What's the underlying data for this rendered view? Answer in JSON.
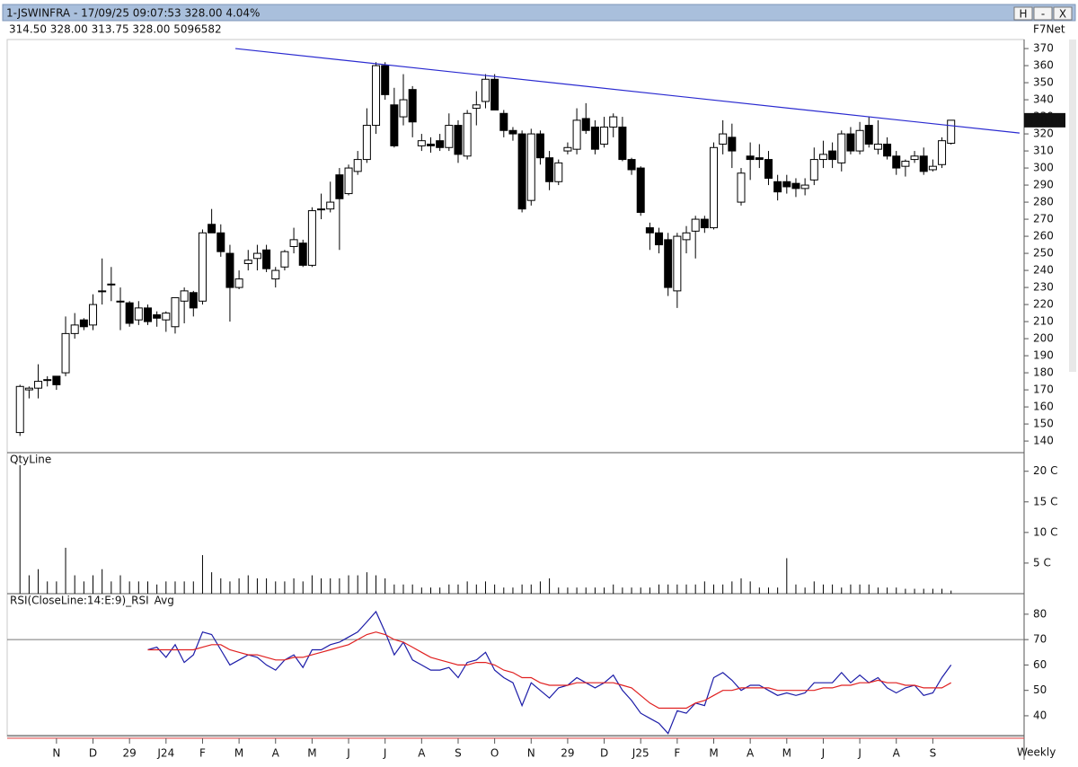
{
  "header": {
    "title": "1-JSWINFRA - 17/09/25 09:07:53 328.00 4.04%",
    "ohlcv": "314.50 328.00 313.75 328.00 5096582",
    "feed": "F7Net",
    "buttons": [
      "H",
      "-",
      "X"
    ],
    "interval": "Weekly"
  },
  "chart_data": [
    {
      "type": "candlestick",
      "xlim": [
        -1.4,
        110
      ],
      "xticks": [
        {
          "value": 4,
          "label": "N"
        },
        {
          "value": 8,
          "label": "D"
        },
        {
          "value": 12,
          "label": "29"
        },
        {
          "value": 16,
          "label": "J24"
        },
        {
          "value": 20,
          "label": "F"
        },
        {
          "value": 24,
          "label": "M"
        },
        {
          "value": 28,
          "label": "A"
        },
        {
          "value": 32,
          "label": "M"
        },
        {
          "value": 36,
          "label": "J"
        },
        {
          "value": 40,
          "label": "J"
        },
        {
          "value": 44,
          "label": "A"
        },
        {
          "value": 48,
          "label": "S"
        },
        {
          "value": 52,
          "label": "O"
        },
        {
          "value": 56,
          "label": "N"
        },
        {
          "value": 60,
          "label": "29"
        },
        {
          "value": 64,
          "label": "D"
        },
        {
          "value": 68,
          "label": "J25"
        },
        {
          "value": 72,
          "label": "F"
        },
        {
          "value": 76,
          "label": "M"
        },
        {
          "value": 80,
          "label": "A"
        },
        {
          "value": 84,
          "label": "M"
        },
        {
          "value": 88,
          "label": "J"
        },
        {
          "value": 92,
          "label": "J"
        },
        {
          "value": 96,
          "label": "A"
        },
        {
          "value": 100,
          "label": "S"
        }
      ],
      "ylim": [
        133.2,
        375.3
      ],
      "yticks": [
        140,
        150,
        160,
        170,
        180,
        190,
        200,
        210,
        220,
        230,
        240,
        250,
        260,
        270,
        280,
        290,
        300,
        310,
        320,
        330,
        340,
        350,
        360,
        370
      ],
      "up_color": "#ffffff",
      "down_color": "#000000",
      "open": [
        145,
        170,
        171,
        176,
        178,
        180,
        203,
        211,
        208,
        228,
        232,
        222,
        221,
        211,
        218,
        214,
        211,
        207,
        222,
        227,
        222,
        267,
        262,
        250,
        230,
        244,
        247,
        252,
        235,
        242,
        254,
        256,
        243,
        276,
        276,
        296,
        285,
        298,
        305,
        325,
        360,
        337,
        330,
        346,
        313,
        314,
        316,
        312,
        325,
        307,
        335,
        339,
        352,
        332,
        322,
        320,
        281,
        320,
        306,
        292,
        310,
        311,
        329,
        324,
        314,
        324,
        324,
        305,
        300,
        265,
        262,
        258,
        228,
        258,
        263,
        270,
        265,
        314,
        318,
        280,
        307,
        306,
        305,
        292,
        292,
        291,
        288,
        293,
        305,
        310,
        303,
        320,
        310,
        325,
        311,
        314,
        307,
        301,
        305,
        307,
        299,
        302,
        314.5
      ],
      "high": [
        173,
        172,
        185,
        178,
        178,
        213,
        215,
        212,
        226,
        247,
        242,
        230,
        222,
        222,
        220,
        216,
        216,
        224,
        230,
        228,
        264,
        276,
        267,
        255,
        240,
        252,
        255,
        255,
        242,
        252,
        265,
        258,
        277,
        285,
        292,
        300,
        302,
        310,
        335,
        362,
        362,
        347,
        355,
        348,
        320,
        318,
        320,
        332,
        328,
        334,
        345,
        355,
        355,
        334,
        324,
        322,
        323,
        322,
        310,
        305,
        315,
        335,
        338,
        328,
        330,
        332,
        330,
        306,
        301,
        268,
        265,
        262,
        262,
        266,
        272,
        272,
        315,
        328,
        326,
        300,
        315,
        314,
        310,
        296,
        296,
        294,
        294,
        312,
        316,
        315,
        322,
        324,
        327,
        330,
        328,
        318,
        310,
        305,
        310,
        312,
        305,
        318,
        328
      ],
      "low": [
        143,
        165,
        165,
        172,
        170,
        178,
        200,
        205,
        205,
        220,
        222,
        205,
        207,
        208,
        208,
        207,
        204,
        203,
        209,
        213,
        220,
        262,
        248,
        210,
        229,
        240,
        240,
        239,
        230,
        240,
        250,
        242,
        242,
        270,
        274,
        252,
        284,
        296,
        303,
        320,
        340,
        312,
        325,
        318,
        310,
        309,
        310,
        310,
        303,
        305,
        325,
        335,
        336,
        318,
        316,
        274,
        278,
        302,
        287,
        290,
        308,
        308,
        320,
        308,
        312,
        318,
        304,
        296,
        272,
        252,
        250,
        225,
        218,
        250,
        247,
        262,
        264,
        308,
        300,
        278,
        293,
        300,
        290,
        281,
        285,
        283,
        284,
        290,
        300,
        300,
        298,
        308,
        308,
        312,
        308,
        305,
        296,
        295,
        303,
        296,
        298,
        300,
        313.75
      ],
      "close": [
        172,
        171,
        175,
        176,
        173,
        203,
        208,
        207,
        220,
        228,
        232,
        222,
        209,
        218,
        210,
        212,
        215,
        224,
        228,
        218,
        262,
        262,
        251,
        230,
        235,
        246,
        250,
        241,
        240,
        251,
        258,
        243,
        275,
        276,
        280,
        282,
        300,
        305,
        325,
        360,
        343,
        313,
        340,
        327,
        316,
        313,
        312,
        325,
        308,
        332,
        337,
        352,
        334,
        322,
        320,
        276,
        320,
        306,
        292,
        303,
        312,
        328,
        322,
        311,
        324,
        330,
        305,
        299,
        274,
        262,
        255,
        230,
        260,
        262,
        270,
        265,
        312,
        320,
        310,
        297,
        305,
        305,
        294,
        286,
        289,
        288,
        290,
        305,
        308,
        305,
        320,
        310,
        322,
        314,
        314,
        307,
        300,
        304,
        307,
        298,
        301,
        316,
        328
      ],
      "last_price": 328,
      "last_price_label": "328.00",
      "trendline": {
        "color": "#2a2ad0",
        "x": [
          23.6,
          109.5
        ],
        "y": [
          370,
          320.5
        ]
      }
    },
    {
      "type": "bar",
      "title": "QtyLine",
      "ylim": [
        0,
        22.6
      ],
      "color": "#000000",
      "yticks": [
        {
          "value": 5,
          "label": "5 C"
        },
        {
          "value": 10,
          "label": "10 C"
        },
        {
          "value": 15,
          "label": "15 C"
        },
        {
          "value": 20,
          "label": "20 C"
        }
      ],
      "values": [
        21,
        3,
        4,
        2,
        2,
        7.5,
        3,
        2,
        3,
        4,
        2,
        3,
        2,
        2,
        2,
        1.5,
        2,
        2,
        2,
        2,
        6.3,
        3.5,
        2.5,
        2,
        2.5,
        3,
        2.5,
        2.5,
        2,
        2,
        2.5,
        2,
        3,
        2.5,
        2.5,
        2.5,
        3,
        3,
        3.5,
        3,
        2.5,
        1.5,
        1.5,
        1.5,
        1,
        1,
        1,
        1.5,
        1.5,
        2,
        1.5,
        2,
        1.5,
        1,
        1,
        1.5,
        1.5,
        2,
        2.5,
        1,
        1,
        1,
        1,
        1,
        1,
        1.5,
        1,
        1,
        1,
        1,
        1.5,
        1.5,
        1.5,
        1.5,
        1.5,
        2,
        1.5,
        1.5,
        2,
        2.5,
        2,
        1,
        1,
        1,
        5.8,
        1.5,
        1,
        2,
        1.5,
        1.5,
        1,
        1.5,
        1.5,
        1.5,
        1,
        1,
        1,
        0.8,
        0.8,
        0.8,
        0.8,
        0.8,
        0.5
      ]
    },
    {
      "type": "line",
      "ylim": [
        32.2,
        84.2
      ],
      "yticks": [
        40,
        50,
        60,
        70,
        80
      ],
      "hlines": [
        70
      ],
      "series": [
        {
          "name": "RSI(CloseLine:14:E:9)_RSI",
          "color": "#1c1ca8",
          "values": [
            null,
            null,
            null,
            null,
            null,
            null,
            null,
            null,
            null,
            null,
            null,
            null,
            null,
            null,
            66,
            67,
            63,
            68,
            61,
            64,
            73,
            72,
            66,
            60,
            62,
            64,
            63,
            60,
            58,
            62,
            64,
            59,
            66,
            66,
            68,
            69,
            71,
            73,
            77,
            81,
            73,
            64,
            69,
            62,
            60,
            58,
            58,
            59,
            55,
            61,
            62,
            65,
            58,
            55,
            53,
            44,
            53,
            50,
            47,
            51,
            52,
            55,
            53,
            51,
            53,
            56,
            50,
            46,
            41,
            39,
            37,
            33,
            42,
            41,
            45,
            44,
            55,
            57,
            54,
            50,
            52,
            52,
            50,
            48,
            49,
            48,
            49,
            53,
            53,
            53,
            57,
            53,
            56,
            53,
            55,
            51,
            49,
            51,
            52,
            48,
            49,
            55,
            60
          ]
        },
        {
          "name": "Avg",
          "color": "#e02020",
          "values": [
            null,
            null,
            null,
            null,
            null,
            null,
            null,
            null,
            null,
            null,
            null,
            null,
            null,
            null,
            66,
            66,
            66,
            66,
            66,
            66,
            67,
            68,
            68,
            66,
            65,
            64,
            64,
            63,
            62,
            62,
            63,
            63,
            64,
            65,
            66,
            67,
            68,
            70,
            72,
            73,
            72,
            70,
            69,
            67,
            65,
            63,
            62,
            61,
            60,
            60,
            61,
            61,
            60,
            58,
            57,
            55,
            55,
            53,
            52,
            52,
            52,
            53,
            53,
            53,
            53,
            53,
            52,
            51,
            48,
            45,
            43,
            43,
            43,
            43,
            45,
            46,
            48,
            50,
            50,
            51,
            51,
            51,
            51,
            50,
            50,
            50,
            50,
            50,
            51,
            51,
            52,
            52,
            53,
            53,
            54,
            53,
            53,
            52,
            52,
            51,
            51,
            51,
            53
          ]
        }
      ]
    }
  ]
}
